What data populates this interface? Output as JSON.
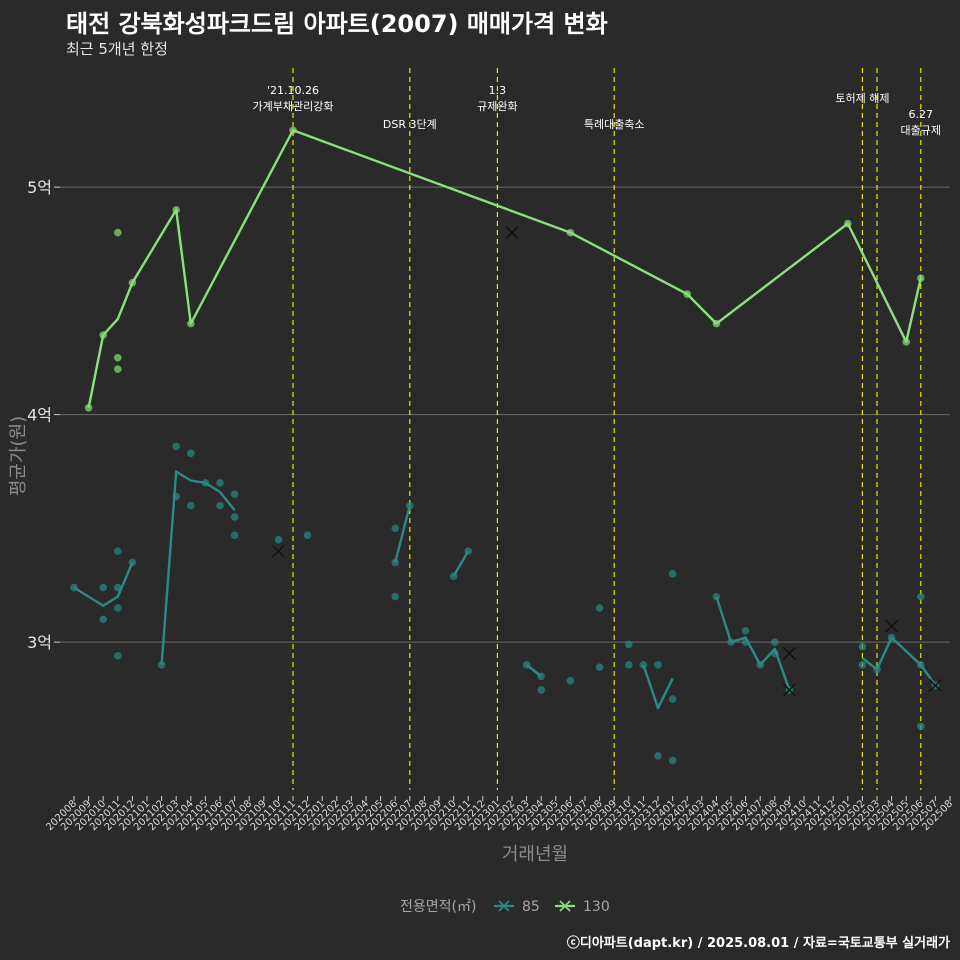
{
  "header": {
    "title": "태전 강북화성파크드림 아파트(2007) 매매가격 변화",
    "subtitle": "최근 5개년 한정"
  },
  "caption": "ⓒ디아파트(dapt.kr) / 2025.08.01 / 자료=국토교통부 실거래가",
  "colors": {
    "background": "#2b2a2a",
    "s85": "#2a8a87",
    "s130": "#8be07e",
    "vline": "#e8e800",
    "grid": "#6b6b6b"
  },
  "chart_data": {
    "type": "line",
    "xlabel": "거래년월",
    "ylabel": "평균가(원)",
    "x_categories": [
      "202008",
      "202009",
      "202010",
      "202011",
      "202012",
      "202101",
      "202102",
      "202103",
      "202104",
      "202105",
      "202106",
      "202107",
      "202108",
      "202109",
      "202110",
      "202111",
      "202112",
      "202201",
      "202202",
      "202203",
      "202204",
      "202205",
      "202206",
      "202207",
      "202208",
      "202209",
      "202210",
      "202211",
      "202212",
      "202301",
      "202302",
      "202303",
      "202304",
      "202305",
      "202306",
      "202307",
      "202308",
      "202309",
      "202310",
      "202311",
      "202312",
      "202401",
      "202402",
      "202403",
      "202404",
      "202405",
      "202406",
      "202407",
      "202408",
      "202409",
      "202410",
      "202411",
      "202412",
      "202501",
      "202502",
      "202503",
      "202504",
      "202505",
      "202506",
      "202507",
      "202508"
    ],
    "y_ticks": [
      {
        "value": 300000000,
        "label": "3억"
      },
      {
        "value": 400000000,
        "label": "4억"
      },
      {
        "value": 500000000,
        "label": "5억"
      }
    ],
    "ylim": [
      235000000,
      555000000
    ],
    "grid": "horizontal",
    "legend": {
      "title": "전용면적(㎡)",
      "position": "bottom",
      "entries": [
        "85",
        "130"
      ]
    },
    "series": [
      {
        "name": "85",
        "color": "#2a8a87",
        "line": [
          {
            "segment": [
              [
                "202008",
                324000000
              ],
              [
                "202010",
                316000000
              ],
              [
                "202011",
                320000000
              ],
              [
                "202012",
                335000000
              ]
            ]
          },
          {
            "segment": [
              [
                "202102",
                290000000
              ],
              [
                "202103",
                375000000
              ],
              [
                "202104",
                371000000
              ],
              [
                "202105",
                370000000
              ],
              [
                "202106",
                366000000
              ],
              [
                "202107",
                358000000
              ]
            ]
          },
          {
            "segment": [
              [
                "202206",
                335000000
              ],
              [
                "202207",
                360000000
              ]
            ]
          },
          {
            "segment": [
              [
                "202210",
                329000000
              ],
              [
                "202211",
                340000000
              ]
            ]
          },
          {
            "segment": [
              [
                "202303",
                290000000
              ],
              [
                "202304",
                285000000
              ]
            ]
          },
          {
            "segment": [
              [
                "202311",
                290000000
              ],
              [
                "202312",
                271000000
              ],
              [
                "202401",
                284000000
              ]
            ]
          },
          {
            "segment": [
              [
                "202404",
                320000000
              ],
              [
                "202405",
                300000000
              ],
              [
                "202406",
                302000000
              ],
              [
                "202407",
                290000000
              ],
              [
                "202408",
                297000000
              ],
              [
                "202409",
                279000000
              ]
            ]
          },
          {
            "segment": [
              [
                "202502",
                293000000
              ],
              [
                "202503",
                288000000
              ],
              [
                "202504",
                302000000
              ],
              [
                "202506",
                290000000
              ],
              [
                "202507",
                281000000
              ]
            ]
          }
        ],
        "points": [
          [
            "202008",
            324000000
          ],
          [
            "202010",
            324000000
          ],
          [
            "202010",
            310000000
          ],
          [
            "202011",
            324000000
          ],
          [
            "202011",
            340000000
          ],
          [
            "202011",
            315000000
          ],
          [
            "202011",
            294000000
          ],
          [
            "202012",
            335000000
          ],
          [
            "202102",
            290000000
          ],
          [
            "202103",
            386000000
          ],
          [
            "202103",
            364000000
          ],
          [
            "202104",
            383000000
          ],
          [
            "202104",
            360000000
          ],
          [
            "202105",
            370000000
          ],
          [
            "202106",
            370000000
          ],
          [
            "202106",
            360000000
          ],
          [
            "202107",
            365000000
          ],
          [
            "202107",
            355000000
          ],
          [
            "202107",
            347000000
          ],
          [
            "202110",
            345000000
          ],
          [
            "202112",
            347000000
          ],
          [
            "202206",
            350000000
          ],
          [
            "202206",
            335000000
          ],
          [
            "202206",
            320000000
          ],
          [
            "202207",
            360000000
          ],
          [
            "202210",
            329000000
          ],
          [
            "202211",
            340000000
          ],
          [
            "202303",
            290000000
          ],
          [
            "202304",
            285000000
          ],
          [
            "202304",
            279000000
          ],
          [
            "202306",
            283000000
          ],
          [
            "202308",
            289000000
          ],
          [
            "202308",
            315000000
          ],
          [
            "202310",
            299000000
          ],
          [
            "202310",
            290000000
          ],
          [
            "202311",
            290000000
          ],
          [
            "202312",
            290000000
          ],
          [
            "202312",
            250000000
          ],
          [
            "202401",
            330000000
          ],
          [
            "202401",
            275000000
          ],
          [
            "202401",
            248000000
          ],
          [
            "202404",
            320000000
          ],
          [
            "202405",
            300000000
          ],
          [
            "202406",
            305000000
          ],
          [
            "202406",
            300000000
          ],
          [
            "202407",
            290000000
          ],
          [
            "202408",
            300000000
          ],
          [
            "202408",
            295000000
          ],
          [
            "202409",
            279000000
          ],
          [
            "202502",
            298000000
          ],
          [
            "202502",
            290000000
          ],
          [
            "202503",
            288000000
          ],
          [
            "202504",
            302000000
          ],
          [
            "202506",
            290000000
          ],
          [
            "202506",
            263000000
          ],
          [
            "202506",
            320000000
          ],
          [
            "202507",
            281000000
          ]
        ],
        "cross_points": [
          [
            "202110",
            340000000
          ],
          [
            "202409",
            295000000
          ],
          [
            "202409",
            279000000
          ],
          [
            "202504",
            307000000
          ],
          [
            "202507",
            281000000
          ]
        ]
      },
      {
        "name": "130",
        "color": "#8be07e",
        "line": [
          {
            "segment": [
              [
                "202009",
                403000000
              ],
              [
                "202010",
                435000000
              ],
              [
                "202011",
                442000000
              ],
              [
                "202012",
                458000000
              ],
              [
                "202103",
                490000000
              ],
              [
                "202104",
                440000000
              ],
              [
                "202111",
                525000000
              ],
              [
                "202306",
                480000000
              ],
              [
                "202402",
                453000000
              ],
              [
                "202404",
                440000000
              ],
              [
                "202501",
                484000000
              ],
              [
                "202505",
                432000000
              ],
              [
                "202506",
                460000000
              ]
            ]
          }
        ],
        "points": [
          [
            "202009",
            403000000
          ],
          [
            "202010",
            435000000
          ],
          [
            "202011",
            480000000
          ],
          [
            "202011",
            425000000
          ],
          [
            "202011",
            420000000
          ],
          [
            "202012",
            458000000
          ],
          [
            "202103",
            490000000
          ],
          [
            "202104",
            440000000
          ],
          [
            "202111",
            525000000
          ],
          [
            "202306",
            480000000
          ],
          [
            "202402",
            453000000
          ],
          [
            "202404",
            440000000
          ],
          [
            "202501",
            484000000
          ],
          [
            "202505",
            432000000
          ],
          [
            "202506",
            460000000
          ]
        ],
        "cross_points": [
          [
            "202302",
            480000000
          ]
        ]
      }
    ],
    "events": [
      {
        "month": "202111",
        "label": [
          "'21.10.26",
          "가계부채관리강화"
        ]
      },
      {
        "month": "202207",
        "label": [
          "DSR 3단계"
        ]
      },
      {
        "month": "202301",
        "label": [
          "1.3",
          "규제완화"
        ]
      },
      {
        "month": "202309",
        "label": [
          "특례대출축소"
        ]
      },
      {
        "month": "202502",
        "label": [
          "토허제 해제"
        ]
      },
      {
        "month": "202503",
        "label": []
      },
      {
        "month": "202506",
        "label": [
          "6.27",
          "대출규제"
        ]
      }
    ]
  }
}
